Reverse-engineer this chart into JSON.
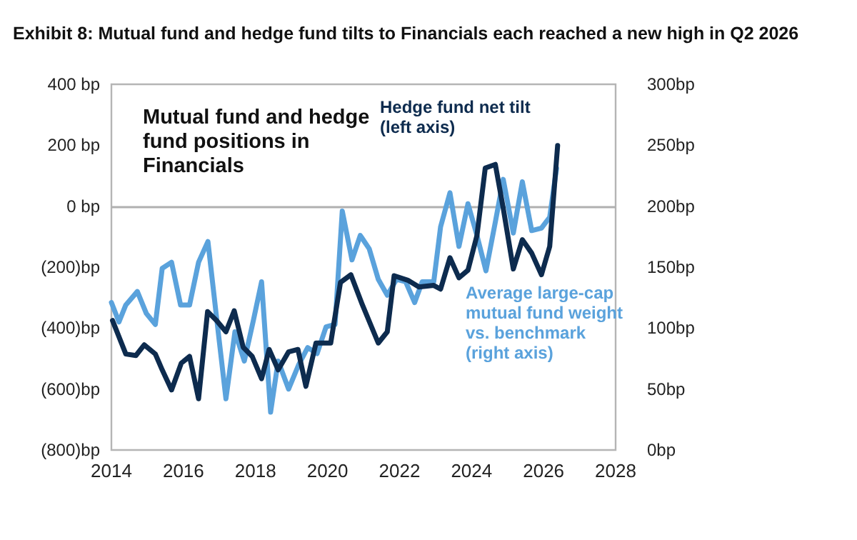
{
  "chart_data": {
    "type": "line",
    "title": "Exhibit 8: Mutual fund and hedge fund tilts to Financials each reached a new high in Q2 2026",
    "annotations": [
      "Mutual fund and hedge fund positions in Financials"
    ],
    "xlim": [
      2014,
      2028
    ],
    "xticks": [
      2014,
      2016,
      2018,
      2020,
      2022,
      2024,
      2026,
      2028
    ],
    "ylim": [
      -800,
      400
    ],
    "yticks": [
      {
        "value": -800,
        "label": "(800)bp"
      },
      {
        "value": -600,
        "label": "(600)bp"
      },
      {
        "value": -400,
        "label": "(400)bp"
      },
      {
        "value": -200,
        "label": "(200)bp"
      },
      {
        "value": 0,
        "label": "0 bp"
      },
      {
        "value": 200,
        "label": "200 bp"
      },
      {
        "value": 400,
        "label": "400 bp"
      }
    ],
    "y2lim": [
      0,
      300
    ],
    "y2ticks": [
      {
        "value": 0,
        "label": "0bp"
      },
      {
        "value": 50,
        "label": "50bp"
      },
      {
        "value": 100,
        "label": "100bp"
      },
      {
        "value": 150,
        "label": "150bp"
      },
      {
        "value": 200,
        "label": "200bp"
      },
      {
        "value": 250,
        "label": "250bp"
      },
      {
        "value": 300,
        "label": "300bp"
      }
    ],
    "ref_lines": [
      {
        "axis": "y",
        "value": 0,
        "color": "#b0b0b0"
      }
    ],
    "grid": false,
    "legend": false,
    "marker": "none",
    "line_style": "solid",
    "series": [
      {
        "name": "Hedge fund net tilt (left axis)",
        "color": "#0d2b4e",
        "x": [
          2014.03,
          2014.4,
          2014.68,
          2014.91,
          2015.22,
          2015.41,
          2015.67,
          2015.94,
          2016.17,
          2016.42,
          2016.67,
          2016.92,
          2017.18,
          2017.41,
          2017.66,
          2017.91,
          2018.17,
          2018.38,
          2018.63,
          2018.92,
          2019.18,
          2019.4,
          2019.68,
          2020.09,
          2020.36,
          2020.65,
          2020.97,
          2021.41,
          2021.66,
          2021.85,
          2022.23,
          2022.54,
          2022.95,
          2023.14,
          2023.4,
          2023.65,
          2023.9,
          2024.15,
          2024.38,
          2024.66,
          2024.88,
          2025.16,
          2025.41,
          2025.67,
          2025.94,
          2026.17,
          2026.39
        ],
        "values": [
          -375,
          -485,
          -490,
          -455,
          -485,
          -537,
          -603,
          -515,
          -493,
          -632,
          -346,
          -375,
          -412,
          -343,
          -463,
          -493,
          -566,
          -470,
          -537,
          -478,
          -470,
          -591,
          -449,
          -449,
          -250,
          -225,
          -324,
          -449,
          -412,
          -228,
          -243,
          -265,
          -260,
          -272,
          -169,
          -235,
          -210,
          -96,
          125,
          137,
          -7,
          -206,
          -110,
          -154,
          -225,
          -132,
          199
        ]
      },
      {
        "name": "Average large-cap mutual fund weight vs. benchmark (right axis)",
        "color": "#5aa2dc",
        "axis": "y2",
        "x": [
          2014.0,
          2014.21,
          2014.4,
          2014.72,
          2014.97,
          2015.22,
          2015.41,
          2015.67,
          2015.92,
          2016.17,
          2016.42,
          2016.68,
          2016.93,
          2017.18,
          2017.43,
          2017.69,
          2017.94,
          2018.17,
          2018.42,
          2018.63,
          2018.92,
          2019.2,
          2019.45,
          2019.71,
          2019.96,
          2020.21,
          2020.41,
          2020.68,
          2020.91,
          2021.16,
          2021.41,
          2021.66,
          2021.92,
          2022.17,
          2022.42,
          2022.63,
          2022.95,
          2023.14,
          2023.4,
          2023.65,
          2023.9,
          2024.15,
          2024.4,
          2024.66,
          2024.88,
          2025.16,
          2025.41,
          2025.67,
          2025.94,
          2026.17,
          2026.36
        ],
        "values": [
          121,
          105,
          119,
          130,
          112,
          103,
          149,
          154,
          119,
          119,
          154,
          171,
          106,
          42,
          97,
          73,
          106,
          138,
          31,
          73,
          50,
          70,
          84,
          79,
          101,
          103,
          196,
          156,
          176,
          165,
          140,
          127,
          140,
          138,
          121,
          138,
          138,
          183,
          211,
          167,
          202,
          176,
          147,
          187,
          222,
          178,
          220,
          180,
          182,
          191,
          231
        ]
      }
    ]
  }
}
